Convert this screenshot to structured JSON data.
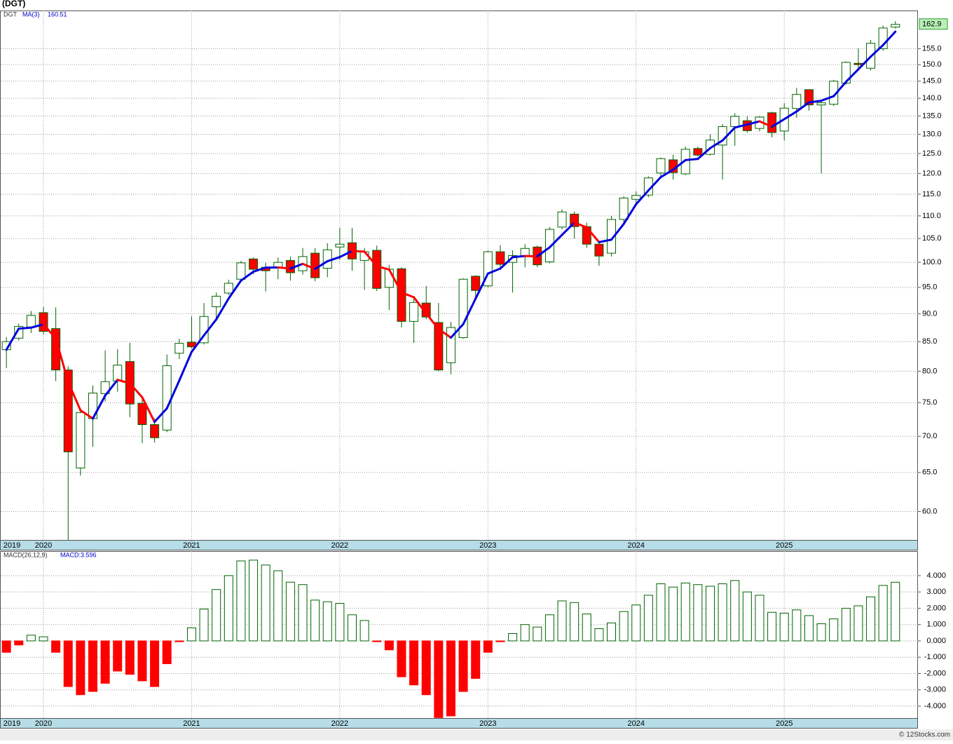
{
  "chart_data": [
    {
      "type": "candlestick",
      "title": "(DGT)",
      "symbol": "DGT",
      "categories": [
        "2019",
        null,
        null,
        "2020",
        null,
        null,
        null,
        null,
        null,
        null,
        null,
        null,
        null,
        null,
        null,
        "2021",
        null,
        null,
        null,
        null,
        null,
        null,
        null,
        null,
        null,
        null,
        null,
        "2022",
        null,
        null,
        null,
        null,
        null,
        null,
        null,
        null,
        null,
        null,
        null,
        "2023",
        null,
        null,
        null,
        null,
        null,
        null,
        null,
        null,
        null,
        null,
        null,
        "2024",
        null,
        null,
        null,
        null,
        null,
        null,
        null,
        null,
        null,
        null,
        null,
        "2025",
        null,
        null,
        null,
        null,
        null,
        null,
        null,
        null,
        null
      ],
      "open": [
        83.6,
        85.6,
        87.6,
        90.2,
        87.3,
        80.2,
        65.6,
        72.6,
        76.4,
        78.4,
        81.6,
        74.9,
        71.7,
        70.9,
        83.0,
        84.9,
        84.8,
        91.3,
        93.9,
        96.6,
        100.7,
        99.0,
        99.0,
        100.4,
        98.3,
        101.9,
        98.8,
        103.2,
        104.1,
        100.4,
        102.5,
        95.0,
        98.7,
        88.6,
        92.0,
        88.4,
        81.4,
        85.7,
        97.2,
        95.3,
        102.2,
        100.0,
        101.2,
        103.2,
        100.1,
        107.5,
        110.4,
        107.6,
        103.8,
        101.9,
        109.2,
        113.8,
        114.8,
        120.1,
        123.4,
        119.9,
        126.3,
        124.8,
        127.2,
        132.1,
        133.7,
        131.6,
        135.9,
        130.9,
        137.1,
        142.5,
        138.1,
        138.3,
        144.4,
        150.4,
        148.9,
        155.0,
        162.0
      ],
      "high": [
        85.8,
        88.2,
        90.5,
        91.3,
        91.2,
        80.8,
        74.0,
        77.7,
        83.5,
        83.7,
        84.8,
        76.0,
        72.6,
        82.8,
        85.5,
        89.5,
        92.0,
        94.0,
        96.5,
        100.3,
        101.0,
        99.9,
        101.0,
        101.2,
        103.0,
        103.0,
        104.0,
        107.3,
        107.3,
        103.0,
        103.5,
        99.5,
        99.0,
        93.0,
        95.3,
        92.0,
        88.5,
        96.8,
        97.4,
        102.5,
        103.6,
        102.5,
        103.8,
        103.5,
        107.5,
        111.5,
        111.0,
        108.5,
        104.5,
        110.0,
        114.5,
        115.7,
        119.3,
        124.0,
        124.7,
        126.8,
        126.8,
        130.0,
        132.8,
        135.8,
        134.9,
        135.0,
        136.2,
        138.6,
        143.0,
        142.6,
        139.1,
        145.4,
        151.0,
        155.1,
        157.8,
        162.5,
        164.0
      ],
      "low": [
        80.5,
        85.2,
        86.5,
        86.3,
        78.4,
        55.0,
        64.6,
        68.5,
        75.2,
        76.7,
        72.8,
        69.0,
        69.1,
        70.6,
        82.0,
        83.8,
        84.5,
        89.0,
        93.5,
        96.0,
        97.6,
        94.2,
        96.6,
        96.3,
        97.5,
        96.2,
        97.0,
        100.5,
        98.3,
        94.5,
        94.3,
        90.7,
        87.5,
        84.8,
        89.0,
        80.0,
        79.5,
        85.5,
        93.0,
        95.0,
        98.5,
        94.0,
        99.0,
        99.0,
        99.8,
        107.0,
        105.0,
        103.0,
        99.3,
        101.2,
        108.5,
        113.0,
        114.3,
        119.2,
        118.5,
        119.6,
        124.3,
        124.5,
        118.5,
        127.0,
        130.5,
        130.8,
        129.2,
        128.4,
        134.5,
        136.5,
        120.0,
        137.8,
        144.0,
        149.0,
        148.2,
        154.3,
        161.5
      ],
      "close": [
        85.0,
        87.7,
        89.7,
        86.8,
        80.2,
        67.8,
        73.5,
        76.5,
        78.3,
        81.0,
        74.8,
        71.7,
        69.8,
        80.9,
        84.7,
        84.1,
        89.5,
        93.3,
        95.8,
        99.9,
        98.6,
        98.3,
        100.0,
        97.9,
        101.2,
        96.9,
        102.6,
        103.8,
        100.7,
        102.2,
        94.8,
        98.6,
        88.6,
        92.1,
        89.4,
        80.2,
        87.5,
        96.6,
        94.4,
        102.2,
        99.6,
        101.4,
        102.9,
        99.5,
        107.0,
        110.9,
        107.6,
        103.8,
        101.3,
        109.2,
        114.1,
        114.7,
        118.9,
        123.7,
        120.2,
        126.1,
        124.6,
        128.5,
        132.1,
        134.9,
        131.0,
        134.7,
        130.5,
        137.2,
        141.1,
        138.1,
        138.7,
        145.0,
        150.7,
        150.0,
        156.7,
        161.7,
        162.9
      ],
      "up_color": "#006400",
      "down_color": "#ff0000",
      "ma": {
        "name": "MA(3)",
        "up_color": "#0000dd",
        "down_color": "#ff0000",
        "values": [
          83.6,
          87.3,
          87.47,
          88.07,
          85.57,
          78.27,
          73.83,
          72.6,
          76.1,
          78.6,
          78.03,
          75.83,
          72.1,
          74.13,
          78.47,
          83.23,
          86.1,
          88.97,
          92.87,
          96.33,
          98.1,
          98.93,
          98.97,
          98.73,
          99.7,
          98.67,
          100.23,
          101.1,
          102.37,
          102.23,
          99.23,
          98.53,
          94.0,
          93.1,
          90.03,
          87.23,
          85.7,
          88.1,
          92.83,
          97.73,
          98.73,
          101.07,
          101.3,
          101.27,
          103.13,
          105.8,
          108.5,
          107.43,
          104.23,
          104.77,
          108.2,
          112.67,
          115.9,
          119.1,
          120.93,
          123.33,
          123.63,
          126.4,
          128.4,
          131.83,
          132.67,
          133.53,
          132.07,
          134.13,
          136.27,
          138.8,
          139.3,
          140.6,
          144.8,
          148.57,
          152.47,
          156.13,
          160.51
        ]
      },
      "ylim": [
        56.6,
        167.6
      ],
      "log": true,
      "grid": true,
      "yticks": [
        {
          "value": 60,
          "label": "60.0"
        },
        {
          "value": 65,
          "label": "65.0"
        },
        {
          "value": 70,
          "label": "70.0"
        },
        {
          "value": 75,
          "label": "75.0"
        },
        {
          "value": 80,
          "label": "80.0"
        },
        {
          "value": 85,
          "label": "85.0"
        },
        {
          "value": 90,
          "label": "90.0"
        },
        {
          "value": 95,
          "label": "95.0"
        },
        {
          "value": 100,
          "label": "100.0"
        },
        {
          "value": 105,
          "label": "105.0"
        },
        {
          "value": 110,
          "label": "110.0"
        },
        {
          "value": 115,
          "label": "115.0"
        },
        {
          "value": 120,
          "label": "120.0"
        },
        {
          "value": 125,
          "label": "125.0"
        },
        {
          "value": 130,
          "label": "130.0"
        },
        {
          "value": 135,
          "label": "135.0"
        },
        {
          "value": 140,
          "label": "140.0"
        },
        {
          "value": 145,
          "label": "145.0"
        },
        {
          "value": 150,
          "label": "150.0"
        },
        {
          "value": 155,
          "label": "155.0"
        }
      ]
    },
    {
      "type": "bar",
      "title": "MACD(26,12,9)",
      "value_label": "MACD:3.596",
      "categories": [
        "2019",
        null,
        null,
        "2020",
        null,
        null,
        null,
        null,
        null,
        null,
        null,
        null,
        null,
        null,
        null,
        "2021",
        null,
        null,
        null,
        null,
        null,
        null,
        null,
        null,
        null,
        null,
        null,
        "2022",
        null,
        null,
        null,
        null,
        null,
        null,
        null,
        null,
        null,
        null,
        null,
        "2023",
        null,
        null,
        null,
        null,
        null,
        null,
        null,
        null,
        null,
        null,
        null,
        "2024",
        null,
        null,
        null,
        null,
        null,
        null,
        null,
        null,
        null,
        null,
        null,
        "2025",
        null,
        null,
        null,
        null,
        null,
        null,
        null,
        null,
        null
      ],
      "values": [
        -0.7,
        -0.25,
        0.35,
        0.25,
        -0.7,
        -2.8,
        -3.3,
        -3.1,
        -2.6,
        -1.85,
        -2.05,
        -2.45,
        -2.8,
        -1.4,
        -0.05,
        0.8,
        1.95,
        3.15,
        4.0,
        4.9,
        4.95,
        4.65,
        4.3,
        3.6,
        3.45,
        2.5,
        2.4,
        2.3,
        1.6,
        1.25,
        -0.05,
        -0.55,
        -2.2,
        -2.7,
        -3.3,
        -4.7,
        -4.6,
        -3.1,
        -2.3,
        -0.7,
        -0.05,
        0.45,
        1.0,
        0.85,
        1.6,
        2.45,
        2.35,
        1.65,
        0.75,
        1.1,
        1.8,
        2.2,
        2.8,
        3.5,
        3.3,
        3.55,
        3.45,
        3.35,
        3.5,
        3.7,
        3.0,
        2.8,
        1.75,
        1.7,
        1.9,
        1.55,
        1.05,
        1.35,
        2.0,
        2.15,
        2.7,
        3.4,
        3.596
      ],
      "up_color": "#006400",
      "down_color": "#ff0000",
      "ylim": [
        -4.73,
        5.5
      ],
      "grid": true,
      "yticks": [
        {
          "value": -4,
          "label": "-4.000"
        },
        {
          "value": -3,
          "label": "-3.000"
        },
        {
          "value": -2,
          "label": "-2.000"
        },
        {
          "value": -1,
          "label": "-1.000"
        },
        {
          "value": 0,
          "label": "0.000"
        },
        {
          "value": 1,
          "label": "1.000"
        },
        {
          "value": 2,
          "label": "2.000"
        },
        {
          "value": 3,
          "label": "3.000"
        },
        {
          "value": 4,
          "label": "4.000"
        }
      ]
    }
  ],
  "footer": "© 12Stocks.com"
}
